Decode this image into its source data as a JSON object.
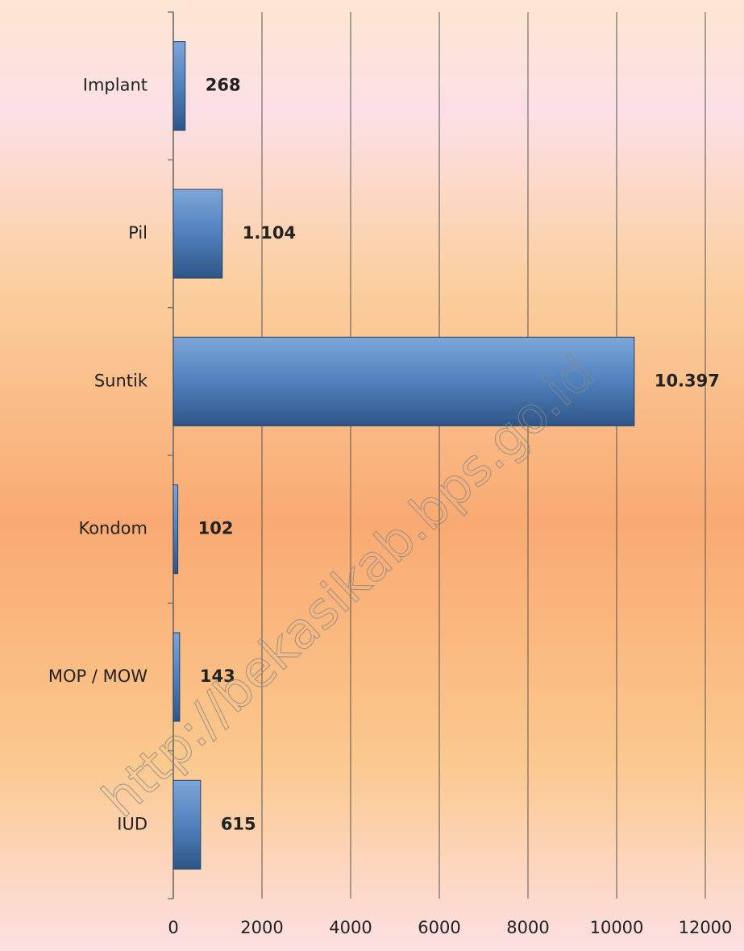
{
  "chart_data": {
    "type": "barh",
    "categories": [
      "Implant",
      "Pil",
      "Suntik",
      "Kondom",
      "MOP / MOW",
      "IUD"
    ],
    "values": [
      268,
      1104,
      10397,
      102,
      143,
      615
    ],
    "value_labels": [
      "268",
      "1.104",
      "10.397",
      "102",
      "143",
      "615"
    ],
    "color": "#4f81bd",
    "xlim": [
      0,
      12000
    ],
    "xticks": [
      0,
      2000,
      4000,
      6000,
      8000,
      10000,
      12000
    ],
    "grid": true,
    "watermark": "http://bekasikab.bps.go.id"
  }
}
